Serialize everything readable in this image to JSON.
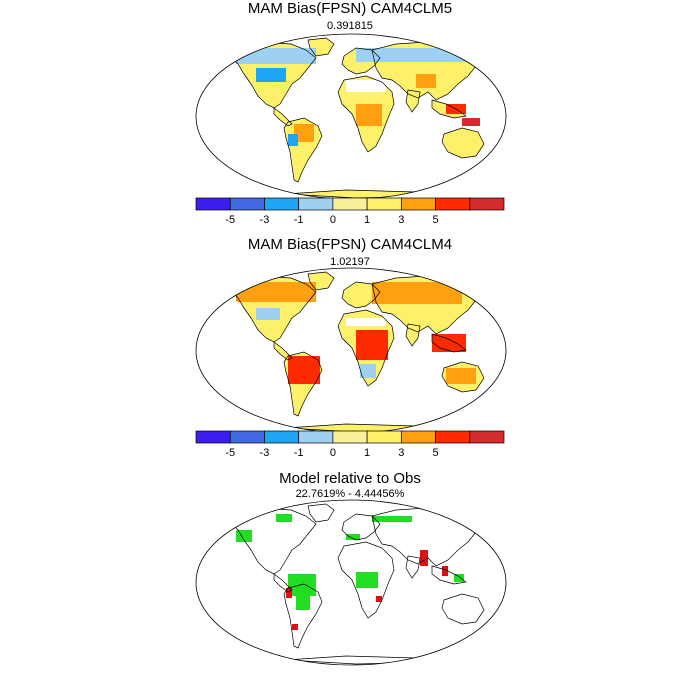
{
  "panels": [
    {
      "title": "MAM Bias(FPSN) CAM4CLM5",
      "subtitle": "0.391815"
    },
    {
      "title": "MAM Bias(FPSN) CAM4CLM4",
      "subtitle": "1.02197"
    },
    {
      "title": "Model relative to Obs",
      "subtitle": "22.7619% - 4.44456%"
    }
  ],
  "colorbar": {
    "colors": [
      "#3b1ff0",
      "#4169e1",
      "#1ea6f5",
      "#9ed1f0",
      "#fbf09a",
      "#fdf06a",
      "#fea010",
      "#fe2a00",
      "#d42c2c"
    ],
    "labels": [
      "-5",
      "-3",
      "-1",
      "0",
      "1",
      "3",
      "5"
    ]
  },
  "map_colors": {
    "land_outline": "#000000",
    "improved": "#22dd22",
    "degraded": "#dd1111"
  }
}
